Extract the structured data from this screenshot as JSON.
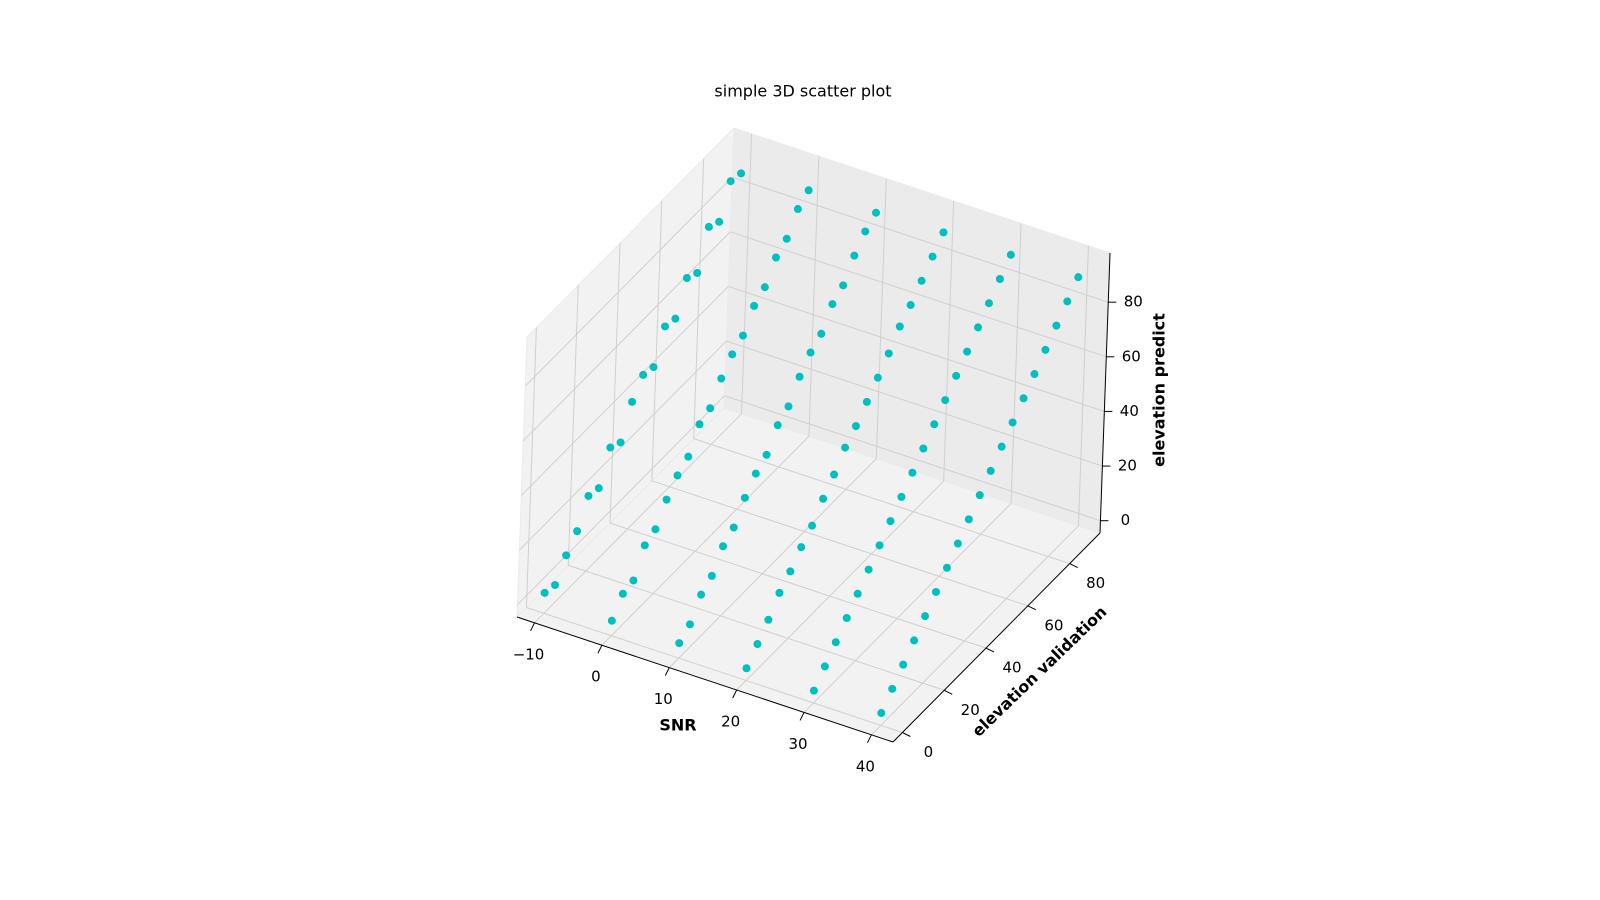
{
  "chart_data": {
    "type": "scatter3d",
    "title": "simple 3D scatter plot",
    "xlabel": "SNR",
    "ylabel": "elevation validation",
    "zlabel": "elevation predict",
    "color": "#00bfbf",
    "xlim": [
      -12.6,
      43.2
    ],
    "ylim": [
      -4.5,
      94.5
    ],
    "zlim": [
      -4.5,
      98
    ],
    "xticks": [
      {
        "value": -10,
        "label": "−10"
      },
      0,
      10,
      20,
      30,
      40
    ],
    "yticks": [
      0,
      20,
      40,
      60,
      80
    ],
    "zticks": [
      0,
      20,
      40,
      60,
      80
    ],
    "grid": true,
    "x": [
      -10,
      -10,
      -10,
      -10,
      -10,
      -10,
      -10,
      -10,
      -10,
      -10,
      -10,
      -10,
      -10,
      -10,
      -10,
      -10,
      -10,
      -10,
      -10,
      0,
      0,
      0,
      0,
      0,
      0,
      0,
      0,
      0,
      0,
      0,
      0,
      0,
      0,
      0,
      0,
      0,
      0,
      0,
      10,
      10,
      10,
      10,
      10,
      10,
      10,
      10,
      10,
      10,
      10,
      10,
      10,
      10,
      10,
      10,
      10,
      10,
      10,
      20,
      20,
      20,
      20,
      20,
      20,
      20,
      20,
      20,
      20,
      20,
      20,
      20,
      20,
      20,
      20,
      20,
      20,
      20,
      30,
      30,
      30,
      30,
      30,
      30,
      30,
      30,
      30,
      30,
      30,
      30,
      30,
      30,
      30,
      30,
      30,
      30,
      30,
      40,
      40,
      40,
      40,
      40,
      40,
      40,
      40,
      40,
      40,
      40,
      40,
      40,
      40,
      40,
      40,
      40,
      40,
      40
    ],
    "y": [
      0,
      5,
      10,
      15,
      20,
      25,
      30,
      35,
      40,
      45,
      50,
      55,
      60,
      65,
      70,
      75,
      80,
      85,
      90,
      0,
      5,
      10,
      15,
      20,
      25,
      30,
      35,
      40,
      45,
      50,
      55,
      60,
      65,
      70,
      75,
      80,
      85,
      90,
      0,
      5,
      10,
      15,
      20,
      25,
      30,
      35,
      40,
      45,
      50,
      55,
      60,
      65,
      70,
      75,
      80,
      85,
      90,
      0,
      5,
      10,
      15,
      20,
      25,
      30,
      35,
      40,
      45,
      50,
      55,
      60,
      65,
      70,
      75,
      80,
      85,
      90,
      0,
      5,
      10,
      15,
      20,
      25,
      30,
      35,
      40,
      45,
      50,
      55,
      60,
      65,
      70,
      75,
      80,
      85,
      90,
      0,
      5,
      10,
      15,
      20,
      25,
      30,
      35,
      40,
      45,
      50,
      55,
      60,
      65,
      70,
      75,
      80,
      85,
      90
    ],
    "z": [
      3,
      2,
      9,
      14,
      23,
      22,
      33,
      31,
      42,
      48,
      47,
      58,
      57,
      68,
      66,
      79,
      77,
      88,
      87,
      1,
      7,
      8,
      17,
      19,
      26,
      31,
      34,
      42,
      44,
      51,
      56,
      59,
      66,
      69,
      76,
      79,
      86,
      89,
      1,
      4,
      11,
      14,
      21,
      24,
      31,
      36,
      39,
      46,
      49,
      56,
      61,
      64,
      71,
      74,
      81,
      86,
      89,
      0,
      5,
      10,
      16,
      20,
      25,
      29,
      35,
      40,
      46,
      50,
      55,
      60,
      65,
      71,
      75,
      80,
      85,
      90,
      0,
      5,
      10,
      15,
      20,
      25,
      30,
      35,
      40,
      45,
      50,
      55,
      60,
      65,
      70,
      75,
      80,
      85,
      90,
      0,
      5,
      10,
      15,
      20,
      25,
      30,
      35,
      40,
      45,
      50,
      55,
      60,
      65,
      70,
      75,
      80,
      85,
      90
    ]
  }
}
